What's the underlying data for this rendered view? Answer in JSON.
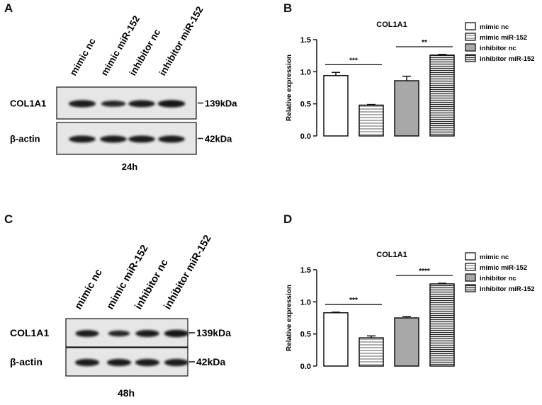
{
  "panels": {
    "A": {
      "letter": "A",
      "lanes": [
        "mimic nc",
        "mimic miR-152",
        "inhibitor nc",
        "inhibitor miR-152"
      ],
      "rows": [
        {
          "label": "COL1A1",
          "size": "139kDa",
          "intensity": [
            0.85,
            0.55,
            0.8,
            0.9
          ]
        },
        {
          "label": "β-actin",
          "size": "42kDa",
          "intensity": [
            0.8,
            0.8,
            0.8,
            0.8
          ]
        }
      ],
      "time": "24h"
    },
    "C": {
      "letter": "C",
      "lanes": [
        "mimic nc",
        "mimic miR-152",
        "inhibitor nc",
        "inhibitor miR-152"
      ],
      "rows": [
        {
          "label": "COL1A1",
          "size": "139kDa",
          "intensity": [
            0.75,
            0.5,
            0.8,
            0.9
          ]
        },
        {
          "label": "β-actin",
          "size": "42kDa",
          "intensity": [
            0.85,
            0.85,
            0.85,
            0.85
          ]
        }
      ],
      "time": "48h"
    }
  },
  "legend": {
    "entries": [
      "mimic nc",
      "mimic  miR-152",
      "inhibitor nc",
      "inhibitor  miR-152"
    ],
    "patterns": [
      "white",
      "hlines",
      "gray",
      "hlines-dense"
    ]
  },
  "chart_data": [
    {
      "panel": "B",
      "letter": "B",
      "type": "bar",
      "title": "COL1A1",
      "xlabel": "",
      "ylabel": "Relative expression",
      "ylim": [
        0,
        1.5
      ],
      "yticks": [
        "0.0",
        "0.5",
        "1.0",
        "1.5"
      ],
      "grid": false,
      "legend_position": "top-right",
      "categories": [
        "mimic nc",
        "mimic  miR-152",
        "inhibitor nc",
        "inhibitor  miR-152"
      ],
      "values": [
        0.94,
        0.48,
        0.86,
        1.26
      ],
      "errors": [
        0.05,
        0.01,
        0.07,
        0.01
      ],
      "significance": [
        {
          "from": 0,
          "to": 1,
          "label": "***"
        },
        {
          "from": 2,
          "to": 3,
          "label": "**"
        }
      ]
    },
    {
      "panel": "D",
      "letter": "D",
      "type": "bar",
      "title": "COL1A1",
      "xlabel": "",
      "ylabel": "Relative expression",
      "ylim": [
        0,
        1.5
      ],
      "yticks": [
        "0.0",
        "0.5",
        "1.0",
        "1.5"
      ],
      "grid": false,
      "legend_position": "top-right",
      "categories": [
        "mimic nc",
        "mimic  miR-152",
        "inhibitor nc",
        "inhibitor  miR-152"
      ],
      "values": [
        0.83,
        0.44,
        0.75,
        1.28
      ],
      "errors": [
        0.01,
        0.03,
        0.02,
        0.01
      ],
      "significance": [
        {
          "from": 0,
          "to": 1,
          "label": "***"
        },
        {
          "from": 2,
          "to": 3,
          "label": "****"
        }
      ]
    }
  ]
}
